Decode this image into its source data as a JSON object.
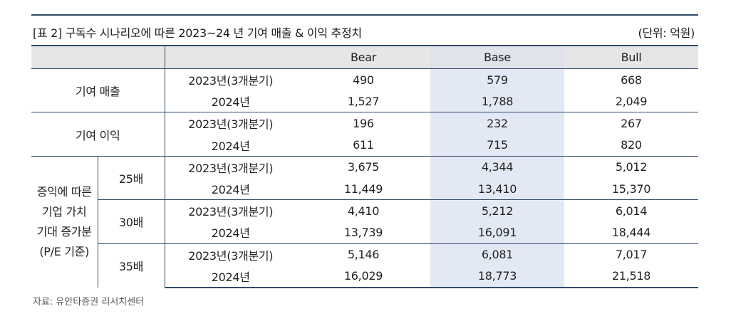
{
  "title": "[표 2] 구독수 시나리오에 따른 2023~24 년 기여 매출 & 이익 추정치",
  "unit": "(단위: 억원)",
  "columns": [
    "Bear",
    "Base",
    "Bull"
  ],
  "period_labels": [
    "2023년(3개분기)",
    "2024년"
  ],
  "groups": [
    {
      "label": "기여 매출",
      "rows": [
        {
          "period": "2023년(3개분기)",
          "bear": "490",
          "base": "579",
          "bull": "668"
        },
        {
          "period": "2024년",
          "bear": "1,527",
          "base": "1,788",
          "bull": "2,049"
        }
      ]
    },
    {
      "label": "기여 이익",
      "rows": [
        {
          "period": "2023년(3개분기)",
          "bear": "196",
          "base": "232",
          "bull": "267"
        },
        {
          "period": "2024년",
          "bear": "611",
          "base": "715",
          "bull": "820"
        }
      ]
    }
  ],
  "pe_group": {
    "label_lines": [
      "증익에 따른",
      "기업 가치",
      "기대 증가분",
      "(P/E 기준)"
    ],
    "subgroups": [
      {
        "multiple": "25배",
        "rows": [
          {
            "period": "2023년(3개분기)",
            "bear": "3,675",
            "base": "4,344",
            "bull": "5,012"
          },
          {
            "period": "2024년",
            "bear": "11,449",
            "base": "13,410",
            "bull": "15,370"
          }
        ]
      },
      {
        "multiple": "30배",
        "rows": [
          {
            "period": "2023년(3개분기)",
            "bear": "4,410",
            "base": "5,212",
            "bull": "6,014"
          },
          {
            "period": "2024년",
            "bear": "13,739",
            "base": "16,091",
            "bull": "18,444"
          }
        ]
      },
      {
        "multiple": "35배",
        "rows": [
          {
            "period": "2023년(3개분기)",
            "bear": "5,146",
            "base": "6,081",
            "bull": "7,017"
          },
          {
            "period": "2024년",
            "bear": "16,029",
            "base": "18,773",
            "bull": "21,518"
          }
        ]
      }
    ]
  },
  "source": "자료: 유안타증권 리서치센터",
  "colors": {
    "rule": "#2f4a6b",
    "header_bg": "#e6e6e6",
    "base_highlight": "#e3e9f4"
  }
}
